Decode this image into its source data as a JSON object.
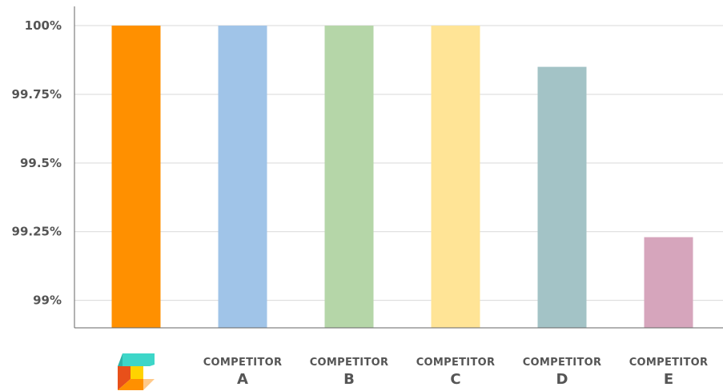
{
  "chart_data": {
    "type": "bar",
    "categories": [
      {
        "line1": "",
        "line2": "",
        "logo": true
      },
      {
        "line1": "COMPETITOR",
        "line2": "A"
      },
      {
        "line1": "COMPETITOR",
        "line2": "B"
      },
      {
        "line1": "COMPETITOR",
        "line2": "C"
      },
      {
        "line1": "COMPETITOR",
        "line2": "D"
      },
      {
        "line1": "COMPETITOR",
        "line2": "E"
      }
    ],
    "values": [
      100,
      100,
      100,
      100,
      99.85,
      99.23
    ],
    "colors": [
      "#FF9000",
      "#A0C4E8",
      "#B5D6A8",
      "#FFE496",
      "#A3C3C6",
      "#D6A5BC"
    ],
    "ylim": [
      98.9,
      100.07
    ],
    "yticks": [
      {
        "value": 100,
        "label": "100%"
      },
      {
        "value": 99.75,
        "label": "99.75%"
      },
      {
        "value": 99.5,
        "label": "99.5%"
      },
      {
        "value": 99.25,
        "label": "99.25%"
      },
      {
        "value": 99,
        "label": "99%"
      }
    ],
    "grid": true,
    "title": "",
    "xlabel": "",
    "ylabel": ""
  }
}
